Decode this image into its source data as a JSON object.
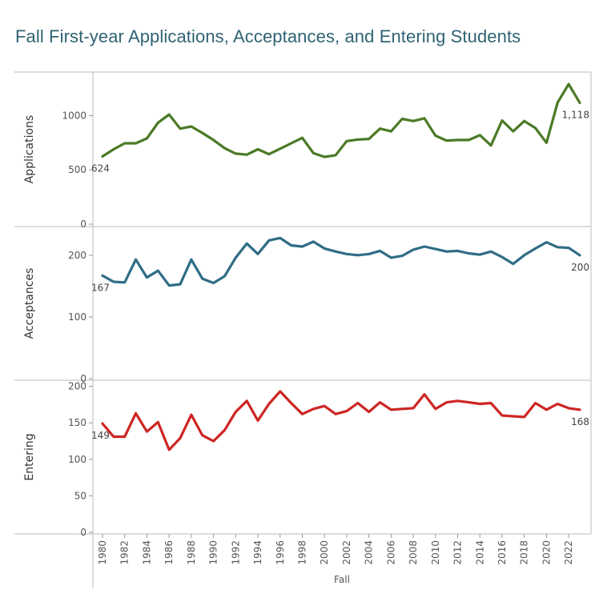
{
  "title": "Fall First-year Applications, Acceptances, and Entering Students",
  "chart_data": {
    "type": "line",
    "title": "Fall First-year Applications, Acceptances, and Entering Students",
    "xlabel": "Fall",
    "x": [
      1980,
      1981,
      1982,
      1983,
      1984,
      1985,
      1986,
      1987,
      1988,
      1989,
      1990,
      1991,
      1992,
      1993,
      1994,
      1995,
      1996,
      1997,
      1998,
      1999,
      2000,
      2001,
      2002,
      2003,
      2004,
      2005,
      2006,
      2007,
      2008,
      2009,
      2010,
      2011,
      2012,
      2013,
      2014,
      2015,
      2016,
      2017,
      2018,
      2019,
      2020,
      2021,
      2022,
      2023
    ],
    "x_ticks": [
      "1980",
      "1982",
      "1984",
      "1986",
      "1988",
      "1990",
      "1992",
      "1994",
      "1996",
      "1998",
      "2000",
      "2002",
      "2004",
      "2006",
      "2008",
      "2010",
      "2012",
      "2014",
      "2016",
      "2018",
      "2020",
      "2022"
    ],
    "series": [
      {
        "name": "Applications",
        "color": "#4b7a26",
        "yticks": [
          "0",
          "500",
          "1000"
        ],
        "ylim": [
          0,
          1350
        ],
        "values": [
          624,
          690,
          745,
          745,
          790,
          935,
          1010,
          880,
          900,
          840,
          775,
          700,
          650,
          640,
          690,
          645,
          695,
          745,
          795,
          655,
          620,
          635,
          765,
          780,
          785,
          880,
          855,
          970,
          950,
          975,
          815,
          770,
          775,
          775,
          820,
          725,
          955,
          855,
          950,
          885,
          750,
          1120,
          1290,
          1118
        ],
        "first_label": "624",
        "last_label": "1,118"
      },
      {
        "name": "Acceptances",
        "color": "#306d86",
        "yticks": [
          "0",
          "100",
          "200"
        ],
        "ylim": [
          0,
          240
        ],
        "values": [
          167,
          157,
          156,
          193,
          164,
          175,
          151,
          153,
          193,
          162,
          155,
          166,
          196,
          219,
          202,
          224,
          228,
          216,
          214,
          222,
          211,
          206,
          202,
          200,
          202,
          207,
          196,
          199,
          209,
          214,
          210,
          206,
          207,
          203,
          201,
          206,
          197,
          186,
          200,
          211,
          221,
          213,
          212,
          200
        ],
        "first_label": "167",
        "last_label": "200"
      },
      {
        "name": "Entering",
        "color": "#cd2624",
        "yticks": [
          "0",
          "50",
          "100",
          "150",
          "200"
        ],
        "ylim": [
          0,
          205
        ],
        "values": [
          149,
          131,
          131,
          163,
          138,
          151,
          113,
          129,
          161,
          133,
          125,
          140,
          165,
          180,
          153,
          176,
          193,
          177,
          162,
          169,
          173,
          162,
          166,
          177,
          165,
          178,
          168,
          169,
          170,
          189,
          169,
          178,
          180,
          178,
          176,
          177,
          160,
          159,
          158,
          177,
          168,
          176,
          170,
          168
        ],
        "first_label": "149",
        "last_label": "168"
      }
    ]
  }
}
